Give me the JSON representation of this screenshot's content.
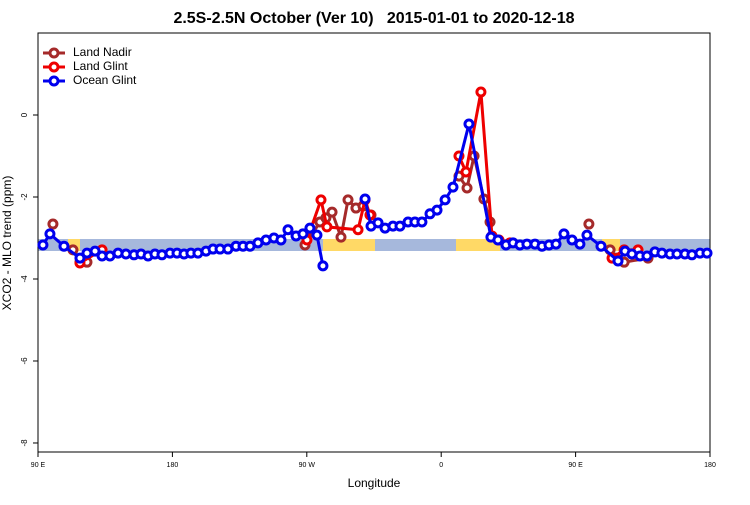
{
  "chart_data": {
    "type": "line",
    "title": "2.5S-2.5N October (Ver 10)   2015-01-01 to 2020-12-18",
    "x_label": "Longitude",
    "y_label": "XCO2 - MLO trend (ppm)",
    "xlim": [
      90,
      540
    ],
    "ylim": [
      -8.22,
      2.0
    ],
    "xticks": [
      {
        "value": 90,
        "label": "90 E"
      },
      180,
      {
        "value": 270,
        "label": "90 W"
      },
      {
        "value": 360,
        "label": "0"
      },
      {
        "value": 450,
        "label": "90 E"
      },
      {
        "value": 540,
        "label": "180"
      }
    ],
    "yticks": [
      0,
      -2,
      -4,
      -6,
      -8
    ],
    "legend": "top-left",
    "series": [
      {
        "name": "Land Nadir",
        "color": "#a52a2a",
        "x": [
          100.0,
          null,
          113.4,
          118.1,
          122.8,
          null,
          268.8,
          278.8,
          282.8,
          286.9,
          292.9,
          297.6,
          302.9,
          307.6,
          313.0,
          null,
          371.9,
          377.3,
          382.0,
          388.6,
          392.7,
          null,
          458.9,
          null,
          473.1,
          477.1,
          482.5,
          498.5
        ],
        "values": [
          -2.66,
          null,
          -3.29,
          -3.59,
          -3.59,
          null,
          -3.17,
          -2.61,
          -2.51,
          -2.37,
          -2.98,
          -2.07,
          -2.27,
          -2.22,
          -2.44,
          null,
          -1.49,
          -1.78,
          -1.0,
          -2.05,
          -2.61,
          null,
          -2.66,
          null,
          -3.29,
          -3.49,
          -3.59,
          -3.49
        ]
      },
      {
        "name": "Land Glint",
        "color": "#ee0000",
        "x": [
          118.1,
          132.9,
          null,
          270.1,
          279.5,
          283.5,
          304.3,
          309.0,
          312.3,
          null,
          371.9,
          376.6,
          386.6,
          394.0,
          398.7,
          406.0,
          null,
          474.4,
          482.5,
          491.8
        ],
        "values": [
          -3.61,
          -3.29,
          null,
          -3.05,
          -2.07,
          -2.73,
          -2.8,
          -2.07,
          -2.44,
          null,
          -1.0,
          -1.39,
          0.56,
          -2.95,
          -3.05,
          -3.12,
          null,
          -3.49,
          -3.29,
          -3.29
        ]
      },
      {
        "name": "Ocean Glint",
        "color": "#0000ee",
        "x": [
          93.3,
          98.0,
          107.4,
          118.1,
          122.8,
          128.2,
          132.9,
          138.2,
          143.6,
          148.9,
          154.3,
          159.0,
          163.7,
          168.3,
          173.0,
          178.4,
          183.1,
          187.8,
          192.4,
          197.1,
          202.5,
          207.2,
          211.9,
          217.2,
          222.6,
          227.3,
          232.0,
          237.3,
          242.7,
          248.0,
          252.7,
          257.4,
          262.8,
          267.4,
          272.1,
          276.8,
          280.8,
          null,
          309.0,
          313.0,
          317.7,
          322.4,
          327.7,
          332.4,
          337.8,
          342.4,
          347.1,
          352.5,
          357.2,
          362.6,
          367.9,
          378.6,
          393.3,
          398.0,
          403.4,
          408.1,
          412.7,
          417.4,
          422.8,
          427.5,
          432.2,
          436.9,
          442.2,
          447.6,
          452.9,
          457.6,
          467.0,
          478.4,
          483.1,
          487.7,
          493.1,
          497.8,
          503.1,
          507.8,
          513.2,
          517.9,
          523.2,
          527.9,
          533.3,
          538.0
        ],
        "values": [
          -3.17,
          -2.9,
          -3.2,
          -3.49,
          -3.37,
          -3.32,
          -3.44,
          -3.44,
          -3.37,
          -3.39,
          -3.41,
          -3.39,
          -3.44,
          -3.39,
          -3.41,
          -3.37,
          -3.37,
          -3.39,
          -3.37,
          -3.37,
          -3.32,
          -3.27,
          -3.27,
          -3.27,
          -3.2,
          -3.2,
          -3.2,
          -3.12,
          -3.05,
          -3.0,
          -3.05,
          -2.8,
          -2.95,
          -2.9,
          -2.76,
          -2.93,
          -3.68,
          null,
          -2.05,
          -2.71,
          -2.63,
          -2.76,
          -2.71,
          -2.71,
          -2.61,
          -2.61,
          -2.61,
          -2.41,
          -2.32,
          -2.07,
          -1.76,
          -0.22,
          -2.98,
          -3.05,
          -3.17,
          -3.12,
          -3.17,
          -3.15,
          -3.15,
          -3.2,
          -3.17,
          -3.15,
          -2.9,
          -3.05,
          -3.15,
          -2.93,
          -3.2,
          -3.56,
          -3.32,
          -3.39,
          -3.44,
          -3.44,
          -3.34,
          -3.37,
          -3.39,
          -3.39,
          -3.39,
          -3.41,
          -3.37,
          -3.37
        ]
      }
    ]
  }
}
